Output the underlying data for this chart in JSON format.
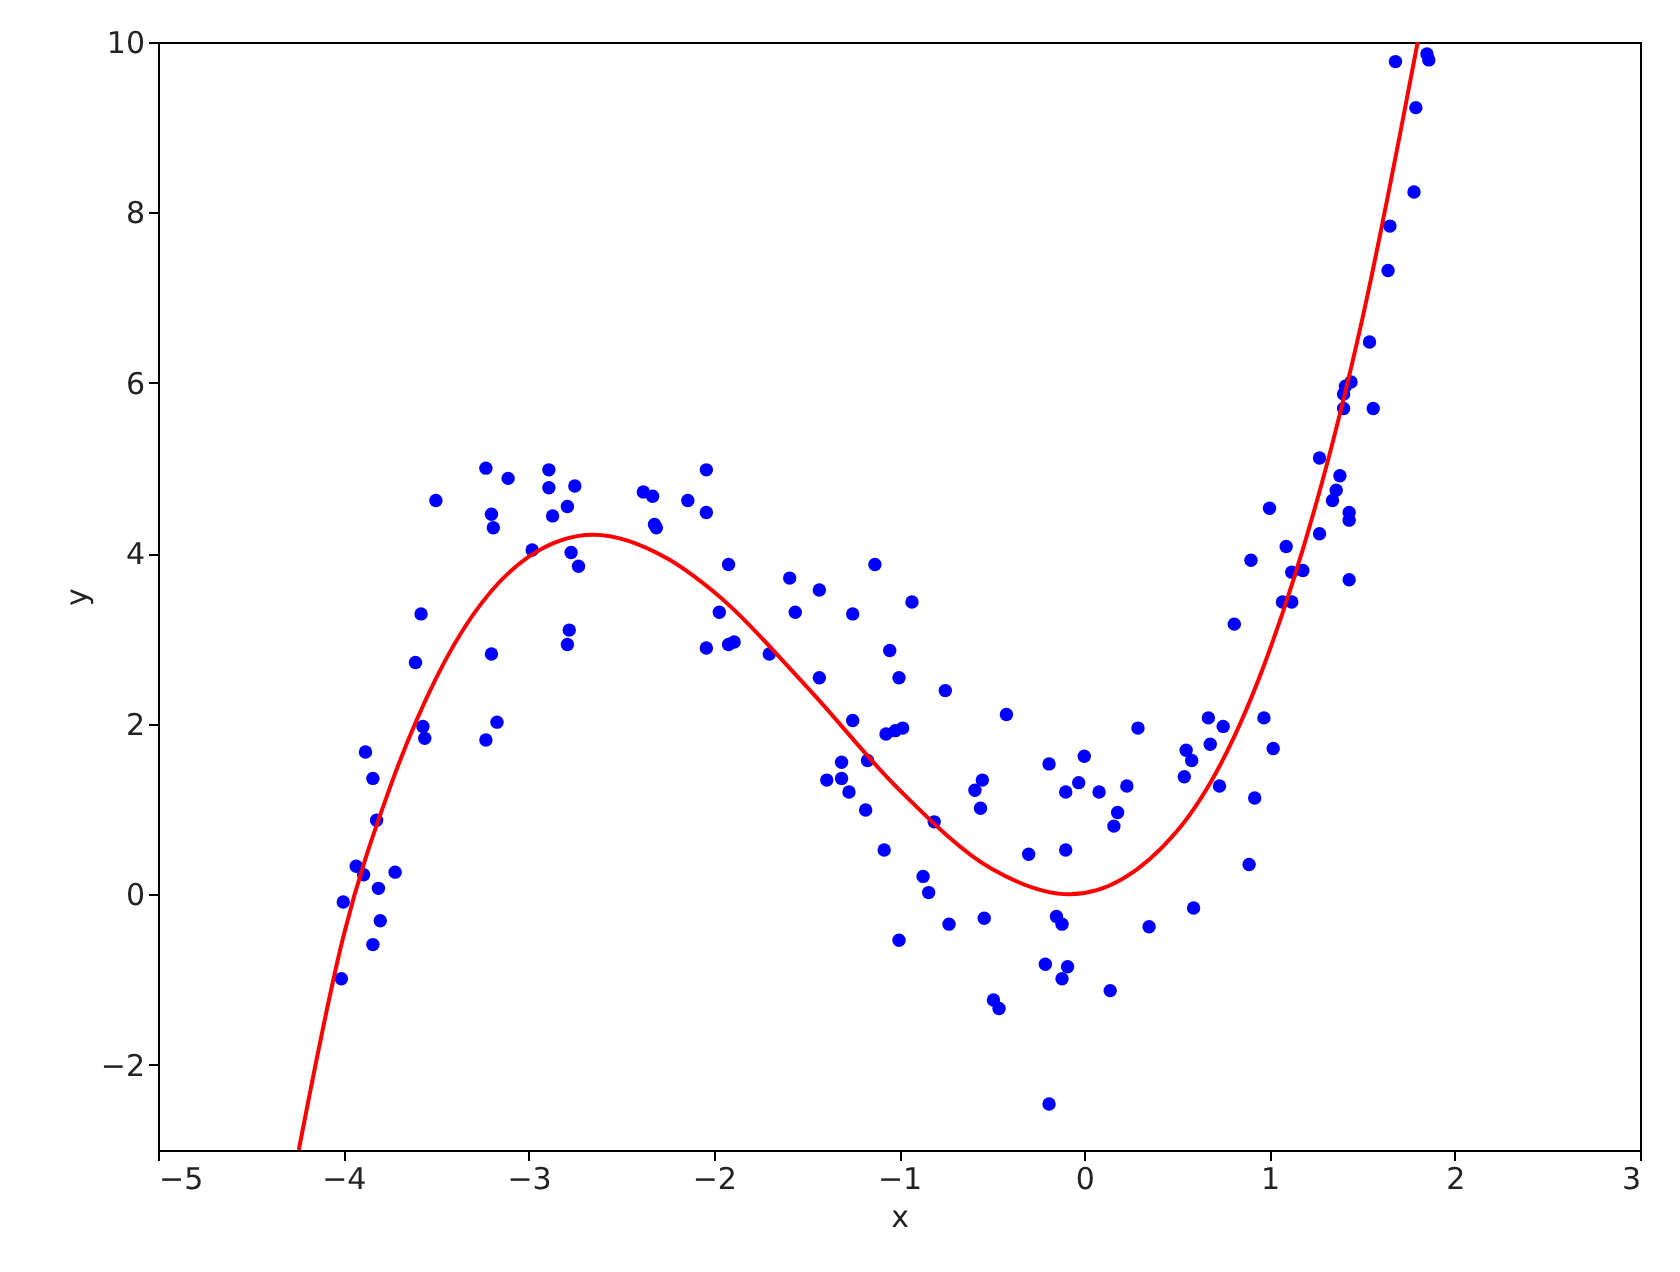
{
  "chart_data": {
    "type": "scatter",
    "xlabel": "x",
    "ylabel": "y",
    "xlim": [
      -5,
      3
    ],
    "ylim": [
      -3,
      10
    ],
    "xticks": [
      {
        "value": -5,
        "label": "−5"
      },
      {
        "value": -4,
        "label": "−4"
      },
      {
        "value": -3,
        "label": "−3"
      },
      {
        "value": -2,
        "label": "−2"
      },
      {
        "value": -1,
        "label": "−1"
      },
      0,
      1,
      2,
      3
    ],
    "yticks": [
      {
        "value": -2,
        "label": "−2"
      },
      0,
      2,
      4,
      6,
      8,
      10
    ],
    "series": [
      {
        "marker": "circle",
        "color": "#0000ff",
        "x": [
          -4.01,
          -4.0,
          -3.93,
          -3.89,
          -3.88,
          -3.84,
          -3.82,
          -3.84,
          -3.8,
          -3.81,
          -3.72,
          -3.61,
          -3.58,
          -3.57,
          -3.56,
          -3.5,
          -3.23,
          -3.2,
          -3.19,
          -3.2,
          -3.17,
          -3.23,
          -3.11,
          -2.98,
          -2.89,
          -2.89,
          -2.87,
          -2.79,
          -2.75,
          -2.77,
          -2.73,
          -2.78,
          -2.79,
          -2.38,
          -2.33,
          -2.32,
          -2.31,
          -2.14,
          -2.04,
          -2.04,
          -2.04,
          -1.92,
          -1.97,
          -1.92,
          -1.89,
          -1.7,
          -1.59,
          -1.56,
          -1.43,
          -1.25,
          -1.13,
          -0.93,
          -1.43,
          -1.05,
          -1.0,
          -1.25,
          -1.07,
          -1.02,
          -0.98,
          -0.75,
          -0.42,
          -1.17,
          -1.31,
          -1.39,
          -1.31,
          -1.27,
          -1.18,
          -1.08,
          -0.81,
          -0.87,
          -0.84,
          -1.0,
          -0.73,
          -0.54,
          -0.59,
          -0.55,
          -0.56,
          -0.3,
          -0.49,
          -0.46,
          -0.19,
          0.0,
          -0.03,
          -0.1,
          0.08,
          -0.1,
          -0.15,
          -0.12,
          -0.21,
          -0.09,
          -0.12,
          -0.19,
          0.14,
          0.23,
          0.29,
          0.18,
          0.16,
          0.35,
          0.59,
          0.55,
          0.58,
          0.54,
          0.67,
          0.75,
          0.68,
          0.73,
          0.89,
          0.92,
          0.97,
          1.02,
          0.81,
          1.07,
          1.12,
          0.9,
          1.09,
          1.12,
          1.18,
          1.43,
          1.0,
          1.27,
          1.34,
          1.36,
          1.38,
          1.43,
          1.43,
          1.27,
          1.41,
          1.44,
          1.4,
          1.4,
          1.56,
          1.54,
          1.64,
          1.65,
          1.78,
          1.79,
          1.68,
          1.86,
          1.85
        ],
        "values": [
          -0.99,
          -0.09,
          0.33,
          0.23,
          1.67,
          1.36,
          0.87,
          -0.59,
          -0.31,
          0.07,
          0.26,
          2.72,
          3.29,
          1.97,
          1.83,
          4.62,
          5.0,
          4.46,
          4.3,
          2.82,
          2.02,
          1.81,
          4.88,
          4.04,
          4.98,
          4.77,
          4.44,
          4.55,
          4.79,
          4.01,
          3.85,
          3.1,
          2.93,
          4.72,
          4.67,
          4.34,
          4.3,
          4.62,
          4.98,
          4.48,
          2.89,
          3.87,
          3.31,
          2.93,
          2.96,
          2.82,
          3.71,
          3.31,
          3.57,
          3.29,
          3.87,
          3.43,
          2.54,
          2.86,
          2.54,
          2.04,
          1.88,
          1.92,
          1.95,
          2.39,
          2.11,
          1.57,
          1.55,
          1.34,
          1.36,
          1.2,
          0.99,
          0.52,
          0.85,
          0.21,
          0.02,
          -0.54,
          -0.35,
          -0.28,
          1.22,
          1.34,
          1.01,
          0.47,
          -1.24,
          -1.34,
          1.53,
          1.62,
          1.31,
          1.2,
          1.2,
          0.52,
          -0.26,
          -0.35,
          -0.82,
          -0.85,
          -0.99,
          -2.46,
          -1.13,
          1.27,
          1.95,
          0.96,
          0.8,
          -0.38,
          -0.16,
          1.69,
          1.57,
          1.38,
          2.07,
          1.97,
          1.76,
          1.27,
          0.35,
          1.13,
          2.07,
          1.71,
          3.17,
          3.43,
          3.43,
          3.92,
          4.08,
          3.78,
          3.8,
          3.69,
          4.53,
          4.23,
          4.62,
          4.74,
          4.91,
          4.48,
          4.39,
          5.12,
          5.96,
          6.01,
          5.87,
          5.7,
          5.7,
          6.48,
          7.32,
          7.84,
          8.24,
          9.23,
          9.77,
          9.79,
          9.86
        ]
      },
      {
        "type": "line",
        "color": "#ff0000",
        "x": [
          -4.24,
          -4.0,
          -3.75,
          -3.5,
          -3.0,
          -2.65,
          -2.25,
          -2.0,
          -1.5,
          -1.0,
          -0.5,
          -0.08,
          0.5,
          1.0,
          1.5,
          1.8
        ],
        "values": [
          -3.0,
          -0.5,
          1.24,
          2.53,
          3.96,
          4.22,
          3.94,
          3.55,
          2.44,
          1.23,
          0.3,
          0.0,
          0.74,
          2.86,
          6.74,
          10.0
        ]
      }
    ]
  }
}
